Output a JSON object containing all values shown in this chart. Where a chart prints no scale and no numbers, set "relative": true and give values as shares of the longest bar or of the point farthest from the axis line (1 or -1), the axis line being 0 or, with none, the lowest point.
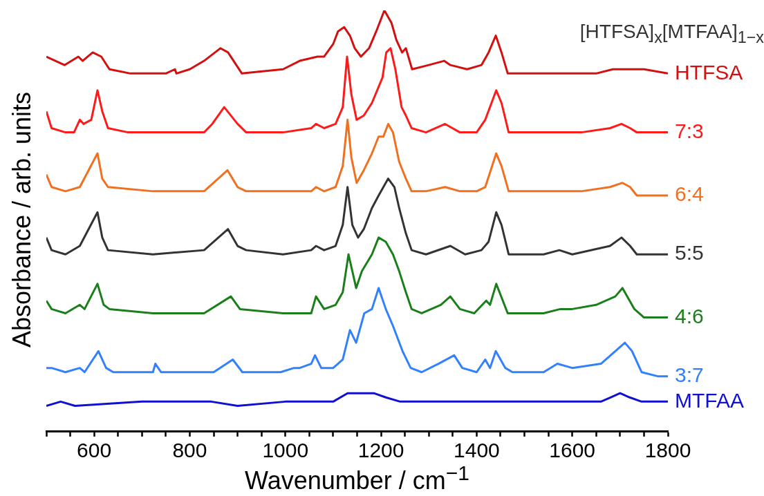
{
  "chart_data": {
    "type": "line",
    "relative": true,
    "marker": "none",
    "xlabel": "Wavenumber / cm$^{−1}$",
    "ylabel": "Absorbance / arb. units",
    "legend_title": "[HTFSA]$_{x}$[MTFAA]$_{1−x}$",
    "xlim": [
      500,
      1800
    ],
    "xticks": [
      {
        "value": 500,
        "label": null
      },
      {
        "value": 550,
        "label": null
      },
      600,
      {
        "value": 650,
        "label": null
      },
      {
        "value": 700,
        "label": null
      },
      {
        "value": 750,
        "label": null
      },
      800,
      {
        "value": 850,
        "label": null
      },
      {
        "value": 900,
        "label": null
      },
      {
        "value": 950,
        "label": null
      },
      1000,
      {
        "value": 1050,
        "label": null
      },
      {
        "value": 1100,
        "label": null
      },
      {
        "value": 1150,
        "label": null
      },
      1200,
      {
        "value": 1250,
        "label": null
      },
      {
        "value": 1300,
        "label": null
      },
      {
        "value": 1350,
        "label": null
      },
      1400,
      {
        "value": 1450,
        "label": null
      },
      {
        "value": 1500,
        "label": null
      },
      {
        "value": 1550,
        "label": null
      },
      1600,
      {
        "value": 1650,
        "label": null
      },
      {
        "value": 1700,
        "label": null
      },
      {
        "value": 1750,
        "label": null
      },
      1800
    ],
    "series": [
      {
        "name": "HTFSA",
        "color": "#d40f0f",
        "x": [
          500,
          538,
          567,
          576,
          597,
          615,
          632,
          676,
          750,
          769,
          772,
          800,
          830,
          864,
          880,
          909,
          995,
          1030,
          1067,
          1081,
          1100,
          1110,
          1123,
          1135,
          1145,
          1158,
          1175,
          1190,
          1207,
          1222,
          1232,
          1244,
          1252,
          1265,
          1300,
          1332,
          1345,
          1380,
          1410,
          1425,
          1440,
          1452,
          1465,
          1550,
          1650,
          1685,
          1695,
          1750,
          1800
        ],
        "values": [
          0.89,
          0.87,
          0.89,
          0.88,
          0.9,
          0.89,
          0.86,
          0.85,
          0.85,
          0.86,
          0.85,
          0.86,
          0.88,
          0.91,
          0.9,
          0.85,
          0.86,
          0.88,
          0.89,
          0.89,
          0.92,
          0.95,
          0.96,
          0.94,
          0.91,
          0.89,
          0.91,
          0.95,
          1.0,
          0.97,
          0.93,
          0.9,
          0.91,
          0.86,
          0.87,
          0.88,
          0.87,
          0.86,
          0.87,
          0.9,
          0.94,
          0.9,
          0.85,
          0.85,
          0.85,
          0.86,
          0.86,
          0.86,
          0.85
        ]
      },
      {
        "name": "7:3",
        "color": "#ff1a1a",
        "x": [
          500,
          511,
          540,
          558,
          570,
          578,
          594,
          607,
          617,
          629,
          671,
          723,
          830,
          847,
          872,
          900,
          918,
          995,
          1054,
          1064,
          1081,
          1105,
          1120,
          1129,
          1138,
          1149,
          1164,
          1181,
          1203,
          1211,
          1220,
          1230,
          1243,
          1252,
          1264,
          1294,
          1334,
          1365,
          1400,
          1418,
          1441,
          1452,
          1467,
          1512,
          1531,
          1619,
          1679,
          1703,
          1721,
          1735,
          1800
        ],
        "values": [
          0.76,
          0.72,
          0.71,
          0.71,
          0.74,
          0.73,
          0.74,
          0.81,
          0.76,
          0.72,
          0.71,
          0.71,
          0.71,
          0.73,
          0.77,
          0.73,
          0.71,
          0.71,
          0.72,
          0.73,
          0.72,
          0.73,
          0.77,
          0.89,
          0.8,
          0.74,
          0.75,
          0.78,
          0.84,
          0.9,
          0.91,
          0.86,
          0.77,
          0.75,
          0.72,
          0.71,
          0.73,
          0.71,
          0.71,
          0.74,
          0.81,
          0.78,
          0.71,
          0.71,
          0.71,
          0.71,
          0.72,
          0.73,
          0.72,
          0.71,
          0.71
        ]
      },
      {
        "name": "6:4",
        "color": "#f07020",
        "x": [
          500,
          511,
          540,
          570,
          607,
          617,
          629,
          723,
          830,
          879,
          900,
          918,
          995,
          1054,
          1064,
          1081,
          1105,
          1120,
          1130,
          1138,
          1149,
          1164,
          1181,
          1195,
          1205,
          1215,
          1225,
          1238,
          1252,
          1264,
          1294,
          1334,
          1365,
          1400,
          1418,
          1441,
          1452,
          1467,
          1512,
          1531,
          1619,
          1679,
          1705,
          1721,
          1735,
          1800
        ],
        "values": [
          0.61,
          0.58,
          0.57,
          0.58,
          0.66,
          0.6,
          0.58,
          0.57,
          0.57,
          0.62,
          0.58,
          0.57,
          0.57,
          0.57,
          0.58,
          0.57,
          0.58,
          0.63,
          0.74,
          0.65,
          0.59,
          0.62,
          0.66,
          0.7,
          0.7,
          0.73,
          0.71,
          0.64,
          0.6,
          0.57,
          0.57,
          0.58,
          0.57,
          0.57,
          0.58,
          0.66,
          0.63,
          0.57,
          0.57,
          0.57,
          0.57,
          0.58,
          0.59,
          0.58,
          0.56,
          0.56
        ]
      },
      {
        "name": "5:5",
        "color": "#333333",
        "x": [
          500,
          511,
          540,
          570,
          607,
          617,
          629,
          723,
          830,
          880,
          900,
          918,
          995,
          1054,
          1064,
          1081,
          1105,
          1120,
          1130,
          1140,
          1152,
          1164,
          1181,
          1195,
          1205,
          1215,
          1228,
          1238,
          1252,
          1264,
          1294,
          1345,
          1376,
          1410,
          1425,
          1441,
          1452,
          1467,
          1512,
          1540,
          1573,
          1600,
          1679,
          1703,
          1721,
          1735,
          1800
        ],
        "values": [
          0.46,
          0.43,
          0.42,
          0.44,
          0.52,
          0.46,
          0.43,
          0.42,
          0.43,
          0.48,
          0.44,
          0.43,
          0.42,
          0.43,
          0.44,
          0.43,
          0.44,
          0.49,
          0.58,
          0.49,
          0.46,
          0.48,
          0.53,
          0.56,
          0.58,
          0.6,
          0.58,
          0.53,
          0.47,
          0.43,
          0.42,
          0.44,
          0.42,
          0.43,
          0.45,
          0.52,
          0.49,
          0.42,
          0.42,
          0.42,
          0.43,
          0.42,
          0.44,
          0.46,
          0.44,
          0.42,
          0.42
        ]
      },
      {
        "name": "4:6",
        "color": "#1a7f1a",
        "x": [
          500,
          511,
          540,
          570,
          580,
          607,
          620,
          632,
          723,
          830,
          886,
          905,
          995,
          1054,
          1064,
          1081,
          1105,
          1120,
          1132,
          1148,
          1160,
          1181,
          1195,
          1210,
          1225,
          1238,
          1252,
          1264,
          1285,
          1325,
          1345,
          1365,
          1395,
          1420,
          1428,
          1441,
          1465,
          1512,
          1540,
          1575,
          1600,
          1650,
          1690,
          1705,
          1730,
          1750,
          1800
        ],
        "values": [
          0.31,
          0.29,
          0.28,
          0.3,
          0.29,
          0.35,
          0.3,
          0.29,
          0.28,
          0.28,
          0.32,
          0.29,
          0.28,
          0.28,
          0.32,
          0.29,
          0.3,
          0.33,
          0.42,
          0.34,
          0.38,
          0.42,
          0.46,
          0.45,
          0.42,
          0.38,
          0.33,
          0.29,
          0.28,
          0.3,
          0.32,
          0.29,
          0.28,
          0.31,
          0.3,
          0.35,
          0.28,
          0.28,
          0.28,
          0.29,
          0.29,
          0.3,
          0.32,
          0.34,
          0.29,
          0.27,
          0.27
        ]
      },
      {
        "name": "3:7",
        "color": "#3380ff",
        "x": [
          500,
          511,
          540,
          570,
          580,
          609,
          625,
          640,
          723,
          728,
          740,
          800,
          850,
          890,
          910,
          990,
          1018,
          1030,
          1054,
          1062,
          1075,
          1100,
          1120,
          1135,
          1148,
          1165,
          1181,
          1195,
          1210,
          1225,
          1245,
          1262,
          1285,
          1320,
          1353,
          1370,
          1400,
          1418,
          1428,
          1440,
          1460,
          1475,
          1540,
          1569,
          1600,
          1660,
          1690,
          1710,
          1725,
          1745,
          1780,
          1800
        ],
        "values": [
          0.15,
          0.15,
          0.14,
          0.15,
          0.14,
          0.19,
          0.15,
          0.14,
          0.14,
          0.16,
          0.14,
          0.14,
          0.14,
          0.17,
          0.14,
          0.14,
          0.15,
          0.15,
          0.16,
          0.18,
          0.15,
          0.15,
          0.17,
          0.24,
          0.21,
          0.28,
          0.29,
          0.34,
          0.29,
          0.25,
          0.19,
          0.15,
          0.14,
          0.16,
          0.18,
          0.15,
          0.14,
          0.17,
          0.15,
          0.19,
          0.15,
          0.14,
          0.14,
          0.16,
          0.15,
          0.16,
          0.19,
          0.21,
          0.19,
          0.14,
          0.13,
          0.13
        ]
      },
      {
        "name": "MTFAA",
        "color": "#1010d0",
        "x": [
          500,
          530,
          560,
          700,
          728,
          760,
          800,
          845,
          900,
          1000,
          1018,
          1030,
          1070,
          1100,
          1130,
          1155,
          1185,
          1210,
          1240,
          1300,
          1350,
          1370,
          1420,
          1440,
          1500,
          1550,
          1567,
          1590,
          1620,
          1660,
          1680,
          1700,
          1720,
          1745,
          1800
        ],
        "values": [
          0.06,
          0.07,
          0.06,
          0.07,
          0.07,
          0.07,
          0.07,
          0.07,
          0.06,
          0.07,
          0.07,
          0.07,
          0.07,
          0.07,
          0.09,
          0.09,
          0.09,
          0.08,
          0.07,
          0.07,
          0.07,
          0.07,
          0.07,
          0.07,
          0.07,
          0.07,
          0.07,
          0.07,
          0.07,
          0.07,
          0.08,
          0.09,
          0.08,
          0.07,
          0.07
        ]
      }
    ]
  }
}
